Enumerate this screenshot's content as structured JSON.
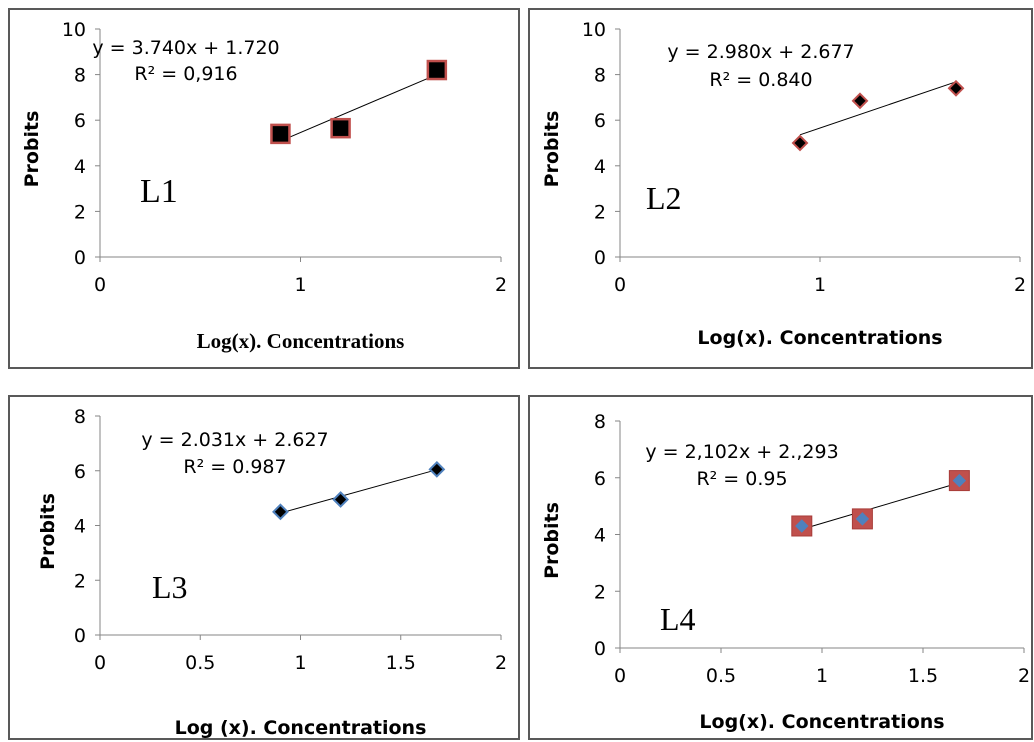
{
  "chart_data": [
    {
      "type": "scatter",
      "id": "L1",
      "panel_label": "L1",
      "ylabel": "Probits",
      "xlabel": "Log(x). Concentrations",
      "xlim": [
        0,
        2
      ],
      "ylim": [
        0,
        10
      ],
      "xticks": [
        "0",
        "1",
        "2"
      ],
      "yticks": [
        "0",
        "2",
        "4",
        "6",
        "8",
        "10"
      ],
      "equation": "y = 3.740x + 1.720",
      "r2": "R² = 0,916",
      "trendline": {
        "slope": 3.74,
        "intercept": 1.72
      },
      "x": [
        0.9,
        1.2,
        1.68
      ],
      "y": [
        5.4,
        5.65,
        8.2
      ],
      "marker": "square",
      "marker_fill": "#000000",
      "marker_stroke": "#c0504d"
    },
    {
      "type": "scatter",
      "id": "L2",
      "panel_label": "L2",
      "ylabel": "Probits",
      "xlabel": "Log(x). Concentrations",
      "xlim": [
        0,
        2
      ],
      "ylim": [
        0,
        10
      ],
      "xticks": [
        "0",
        "1",
        "2"
      ],
      "yticks": [
        "0",
        "2",
        "4",
        "6",
        "8",
        "10"
      ],
      "equation": "y = 2.980x + 2.677",
      "r2": "R² = 0.840",
      "trendline": {
        "slope": 2.98,
        "intercept": 2.677
      },
      "x": [
        0.9,
        1.2,
        1.68
      ],
      "y": [
        5.0,
        6.85,
        7.4
      ],
      "marker": "diamond",
      "marker_fill": "#000000",
      "marker_stroke": "#c0504d"
    },
    {
      "type": "scatter",
      "id": "L3",
      "panel_label": "L3",
      "ylabel": "Probits",
      "xlabel": "Log (x). Concentrations",
      "xlim": [
        0,
        2
      ],
      "ylim": [
        0,
        8
      ],
      "xticks": [
        "0",
        "0.5",
        "1",
        "1.5",
        "2"
      ],
      "yticks": [
        "0",
        "2",
        "4",
        "6",
        "8"
      ],
      "equation": "y = 2.031x + 2.627",
      "r2": "R² = 0.987",
      "trendline": {
        "slope": 2.031,
        "intercept": 2.627
      },
      "x": [
        0.9,
        1.2,
        1.68
      ],
      "y": [
        4.5,
        4.95,
        6.05
      ],
      "marker": "diamond",
      "marker_fill": "#000000",
      "marker_stroke": "#4f81bd"
    },
    {
      "type": "scatter",
      "id": "L4",
      "panel_label": "L4",
      "ylabel": "Probits",
      "xlabel": "Log(x). Concentrations",
      "xlim": [
        0,
        2
      ],
      "ylim": [
        0,
        8
      ],
      "xticks": [
        "0",
        "0.5",
        "1",
        "1.5",
        "2"
      ],
      "yticks": [
        "0",
        "2",
        "4",
        "6",
        "8"
      ],
      "equation": "y = 2,102x + 2.,293",
      "r2": "R² = 0.95",
      "trendline": {
        "slope": 2.102,
        "intercept": 2.293
      },
      "x": [
        0.9,
        1.2,
        1.68
      ],
      "y": [
        4.3,
        4.55,
        5.9
      ],
      "marker": "square-diamond",
      "marker_fill": "#c0504d",
      "marker_stroke": "#c0504d",
      "inner_fill": "#4f81bd"
    }
  ]
}
